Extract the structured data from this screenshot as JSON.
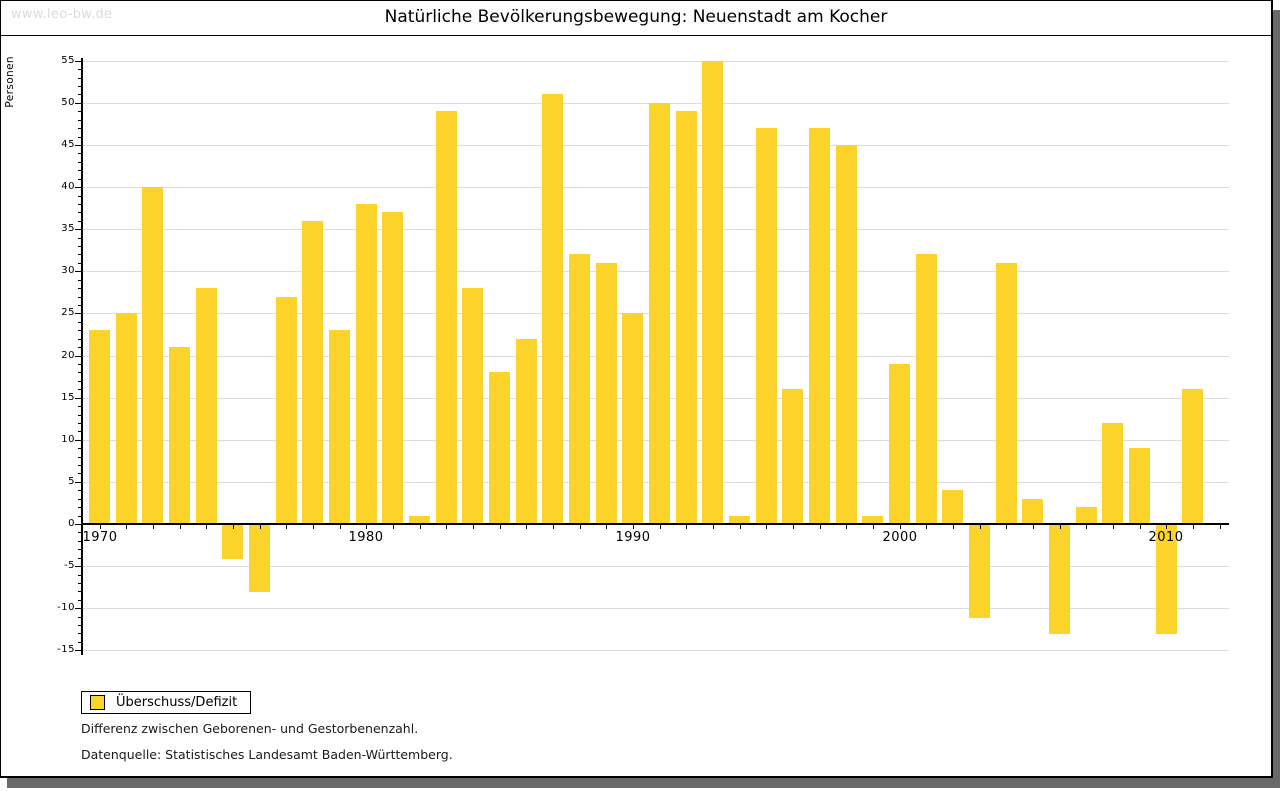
{
  "watermark": "www.leo-bw.de",
  "colors": {
    "bar": "#FBD32B",
    "grid": "#DCDCDC",
    "axis": "#000000",
    "frame_shadow": "#696969",
    "watermark_text": "#DCDCDC"
  },
  "chart_data": {
    "type": "bar",
    "title": "Natürliche Bevölkerungsbewegung: Neuenstadt am Kocher",
    "xlabel": "",
    "ylabel": "Personen",
    "ylim": [
      -15,
      55
    ],
    "ytick_step": 5,
    "y_minor_tick_step": 1,
    "grid": true,
    "legend_position": "bottom-left",
    "xtick_labels": [
      "1970",
      "1980",
      "1990",
      "2000",
      "2010"
    ],
    "series": [
      {
        "name": "Überschuss/Defizit",
        "color": "#FBD32B",
        "x": [
          1970,
          1971,
          1972,
          1973,
          1974,
          1975,
          1976,
          1977,
          1978,
          1979,
          1980,
          1981,
          1982,
          1983,
          1984,
          1985,
          1986,
          1987,
          1988,
          1989,
          1990,
          1991,
          1992,
          1993,
          1994,
          1995,
          1996,
          1997,
          1998,
          1999,
          2000,
          2001,
          2002,
          2003,
          2004,
          2005,
          2006,
          2007,
          2008,
          2009,
          2010,
          2011
        ],
        "values": [
          23,
          25,
          40,
          21,
          28,
          -4,
          -8,
          27,
          36,
          23,
          38,
          37,
          1,
          49,
          28,
          18,
          22,
          51,
          32,
          31,
          25,
          50,
          49,
          55,
          1,
          47,
          16,
          47,
          45,
          1,
          19,
          32,
          4,
          -11,
          31,
          3,
          -13,
          2,
          12,
          9,
          -13,
          16
        ]
      }
    ],
    "annotations": [
      "Differenz zwischen Geborenen- und Gestorbenenzahl.",
      "Datenquelle: Statistisches Landesamt Baden-Württemberg."
    ]
  }
}
